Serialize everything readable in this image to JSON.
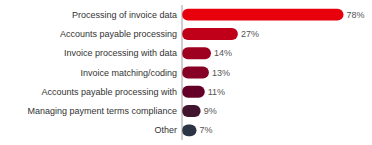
{
  "chart_data": {
    "type": "bar",
    "orientation": "horizontal",
    "categories": [
      "Processing of invoice data",
      "Accounts payable processing",
      "Invoice processing with data",
      "Invoice matching/coding",
      "Accounts payable processing with",
      "Managing payment terms compliance",
      "Other"
    ],
    "values": [
      78,
      27,
      14,
      13,
      11,
      9,
      7
    ],
    "value_labels": [
      "78%",
      "27%",
      "14%",
      "13%",
      "11%",
      "9%",
      "7%"
    ],
    "colors": [
      "#e8000d",
      "#bf0018",
      "#9e0020",
      "#870025",
      "#640028",
      "#42152e",
      "#2c3545"
    ],
    "xlim": [
      0,
      85
    ],
    "data_labels": true,
    "tick_labels": false,
    "grid": false
  }
}
